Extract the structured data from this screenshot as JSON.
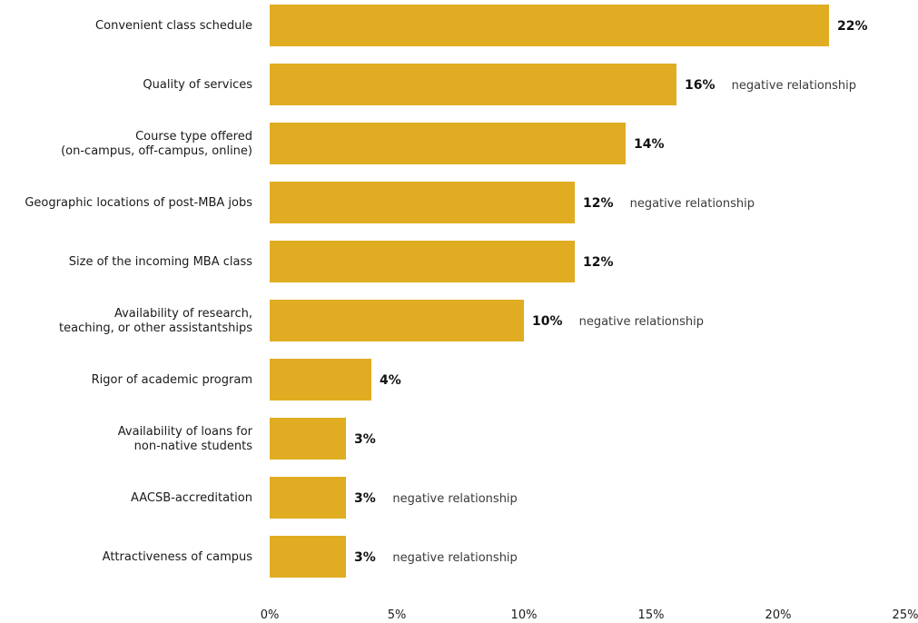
{
  "chart_data": {
    "type": "bar",
    "orientation": "horizontal",
    "categories": [
      [
        "Convenient class schedule"
      ],
      [
        "Quality of services"
      ],
      [
        "Course type offered",
        "(on-campus, off-campus, online)"
      ],
      [
        "Geographic locations of post-MBA jobs"
      ],
      [
        "Size of the incoming MBA class"
      ],
      [
        "Availability of research,",
        "teaching, or other assistantships"
      ],
      [
        "Rigor of academic program"
      ],
      [
        "Availability of loans for",
        "non-native students"
      ],
      [
        "AACSB-accreditation"
      ],
      [
        "Attractiveness of campus"
      ]
    ],
    "values": [
      22,
      16,
      14,
      12,
      12,
      10,
      4,
      3,
      3,
      3
    ],
    "value_labels": [
      "22%",
      "16%",
      "14%",
      "12%",
      "12%",
      "10%",
      "4%",
      "3%",
      "3%",
      "3%"
    ],
    "annotations": [
      "",
      "negative relationship",
      "",
      "negative relationship",
      "",
      "negative relationship",
      "",
      "",
      "negative relationship",
      "negative relationship"
    ],
    "xlim": [
      0,
      25
    ],
    "x_ticks": [
      0,
      5,
      10,
      15,
      20,
      25
    ],
    "x_tick_labels": [
      "0%",
      "5%",
      "10%",
      "15%",
      "20%",
      "25%"
    ],
    "bar_color": "#E0AC21",
    "grid": false,
    "legend": "none"
  }
}
